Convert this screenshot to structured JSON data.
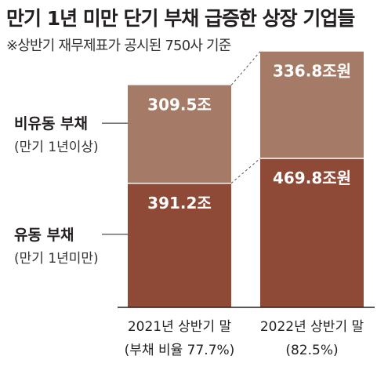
{
  "title": "만기 1년 미만 단기 부채 급증한 상장 기업들",
  "subtitle": "※상반기 재무제표가 공시된 750사 기준",
  "colors": {
    "non_current": "#a57b68",
    "current": "#8e4a37",
    "axis": "#231f20",
    "connector": "#555555"
  },
  "chart_data": {
    "type": "bar",
    "stacked": true,
    "unit": "조원",
    "categories": [
      {
        "line1": "2021년 상반기 말",
        "line2": "(부채 비율 77.7%)"
      },
      {
        "line1": "2022년 상반기 말",
        "line2": "(82.5%)"
      }
    ],
    "series": [
      {
        "key": "current",
        "name": "유동 부채",
        "sublabel": "(만기 1년미만)",
        "values": [
          391.2,
          469.8
        ],
        "labels": [
          "391.2조",
          "469.8조원"
        ]
      },
      {
        "key": "non_current",
        "name": "비유동 부채",
        "sublabel": "(만기 1년이상)",
        "values": [
          309.5,
          336.8
        ],
        "labels": [
          "309.5조",
          "336.8조원"
        ]
      }
    ]
  }
}
